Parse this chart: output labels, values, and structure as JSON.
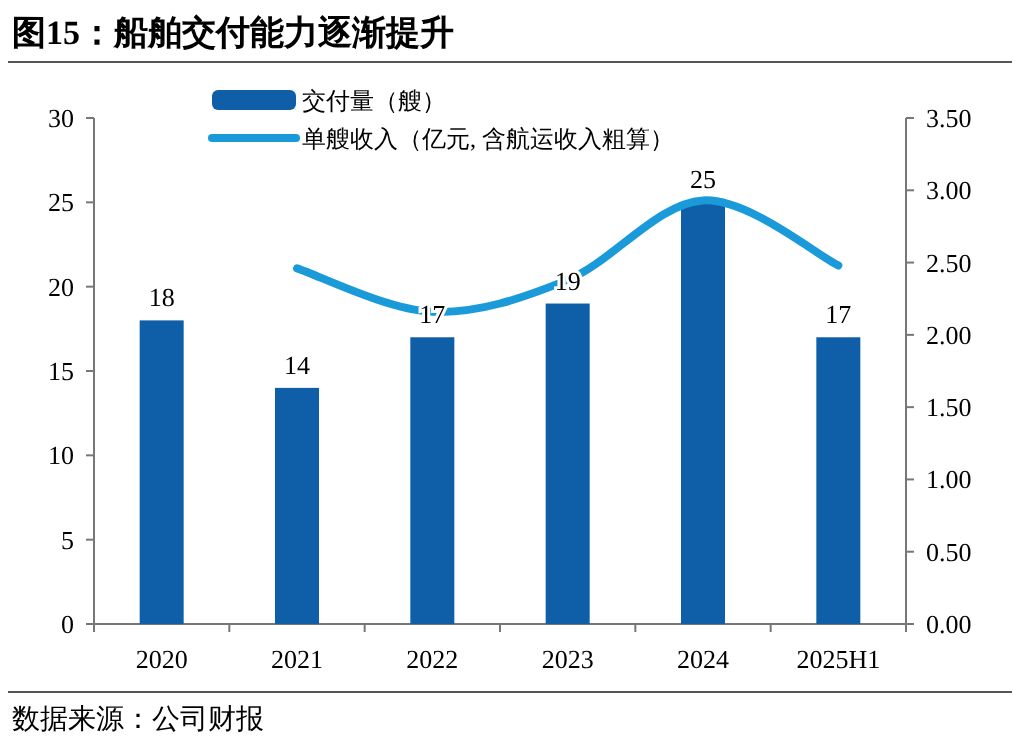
{
  "chart_data": {
    "type": "bar",
    "title": "图15：船舶交付能力逐渐提升",
    "annotations": [
      "数据来源：公司财报"
    ],
    "categories": [
      "2020",
      "2021",
      "2022",
      "2023",
      "2024",
      "2025H1"
    ],
    "series": [
      {
        "name": "交付量（艘）",
        "color": "#0e5ea8",
        "values": [
          18,
          14,
          17,
          19,
          25,
          17
        ],
        "value_labels": [
          "18",
          "14",
          "17",
          "19",
          "25",
          "17"
        ]
      },
      {
        "name": "单艘收入（亿元, 含航运收入粗算）",
        "type": "line",
        "axis": "y2",
        "color": "#1a9ad9",
        "values": [
          null,
          2.46,
          2.16,
          2.38,
          2.93,
          2.48
        ]
      }
    ],
    "ylim": [
      0,
      30
    ],
    "yticks": [
      0,
      5,
      10,
      15,
      20,
      25,
      30
    ],
    "y2lim": [
      0,
      3.5
    ],
    "y2ticks": [
      {
        "value": 0,
        "label": "0.00"
      },
      {
        "value": 0.5,
        "label": "0.50"
      },
      {
        "value": 1,
        "label": "1.00"
      },
      {
        "value": 1.5,
        "label": "1.50"
      },
      {
        "value": 2,
        "label": "2.00"
      },
      {
        "value": 2.5,
        "label": "2.50"
      },
      {
        "value": 3,
        "label": "3.00"
      },
      {
        "value": 3.5,
        "label": "3.50"
      }
    ],
    "legend": "top",
    "grid": false,
    "marker": "none",
    "line_style": "solid"
  }
}
